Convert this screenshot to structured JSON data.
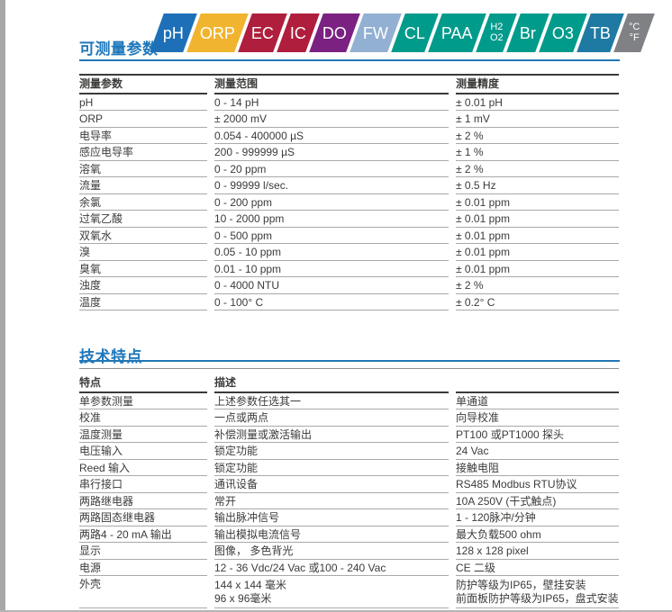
{
  "page": {
    "accent_color": "#1f78bb",
    "text_color": "#3b3b3a"
  },
  "sections": {
    "params": {
      "title": "可测量参数"
    },
    "features": {
      "title": "技术特点"
    }
  },
  "badges": [
    {
      "label": "pH",
      "color": "#1d70b7"
    },
    {
      "label": "ORP",
      "color": "#f1b42f"
    },
    {
      "label": "EC",
      "color": "#af1e3d"
    },
    {
      "label": "IC",
      "color": "#af1e3d"
    },
    {
      "label": "DO",
      "color": "#7a2182"
    },
    {
      "label": "FW",
      "color": "#92b0d2"
    },
    {
      "label": "CL",
      "color": "#009b8b"
    },
    {
      "label": "PAA",
      "color": "#009b8b"
    },
    {
      "label": "H2",
      "label2": "O2",
      "color": "#009b8b"
    },
    {
      "label": "Br",
      "color": "#009b8b"
    },
    {
      "label": "O3",
      "color": "#009b8b"
    },
    {
      "label": "TB",
      "color": "#1f7aa3"
    },
    {
      "label": "°C",
      "label2": "°F",
      "color": "#7f8184"
    }
  ],
  "params_table": {
    "headers": [
      "测量参数",
      "测量范围",
      "测量精度"
    ],
    "rows": [
      [
        "pH",
        "0 - 14 pH",
        "± 0.01 pH"
      ],
      [
        "ORP",
        "± 2000 mV",
        "± 1 mV"
      ],
      [
        "电导率",
        "0.054 - 400000 µS",
        "± 2 %"
      ],
      [
        "感应电导率",
        "200 - 999999 µS",
        "± 1 %"
      ],
      [
        "溶氧",
        "0 - 20 ppm",
        "± 2 %"
      ],
      [
        "流量",
        "0 - 99999 l/sec.",
        "± 0.5 Hz"
      ],
      [
        "余氯",
        "0 - 200 ppm",
        "± 0.01 ppm"
      ],
      [
        "过氧乙酸",
        "10 - 2000 ppm",
        "± 0.01 ppm"
      ],
      [
        "双氧水",
        "0 - 500 ppm",
        "± 0.01 ppm"
      ],
      [
        "溴",
        "0.05 - 10 ppm",
        "± 0.01 ppm"
      ],
      [
        "臭氧",
        "0.01 - 10 ppm",
        "± 0.01 ppm"
      ],
      [
        "浊度",
        "0 - 4000 NTU",
        "± 2 %"
      ],
      [
        "温度",
        "0 - 100° C",
        "± 0.2° C"
      ]
    ]
  },
  "features_table": {
    "headers": [
      "特点",
      "描述",
      ""
    ],
    "rows": [
      [
        "单参数测量",
        "上述参数任选其一",
        "单通道"
      ],
      [
        "校准",
        "一点或两点",
        "向导校准"
      ],
      [
        "温度测量",
        "补偿测量或激活输出",
        "PT100 或PT1000 探头"
      ],
      [
        "电压输入",
        "锁定功能",
        "24 Vac"
      ],
      [
        "Reed 输入",
        "锁定功能",
        "接触电阻"
      ],
      [
        "串行接口",
        "通讯设备",
        "RS485 Modbus RTU协议"
      ],
      [
        "两路继电器",
        "常开",
        "10A 250V (干式触点)"
      ],
      [
        "两路固态继电器",
        "输出脉冲信号",
        "1 - 120脉冲/分钟"
      ],
      [
        "两路4 - 20 mA 输出",
        "输出模拟电流信号",
        "最大负载500 ohm"
      ],
      [
        "显示",
        "图像， 多色背光",
        "128 x 128 pixel"
      ],
      [
        "电源",
        "12 - 36 Vdc/24 Vac 或100 - 240 Vac",
        "CE 二级"
      ],
      [
        "外壳",
        [
          "144 x 144 毫米",
          "96 x 96毫米"
        ],
        [
          "防护等级为IP65，壁挂安装",
          "前面板防护等级为IP65，盘式安装"
        ]
      ]
    ]
  }
}
